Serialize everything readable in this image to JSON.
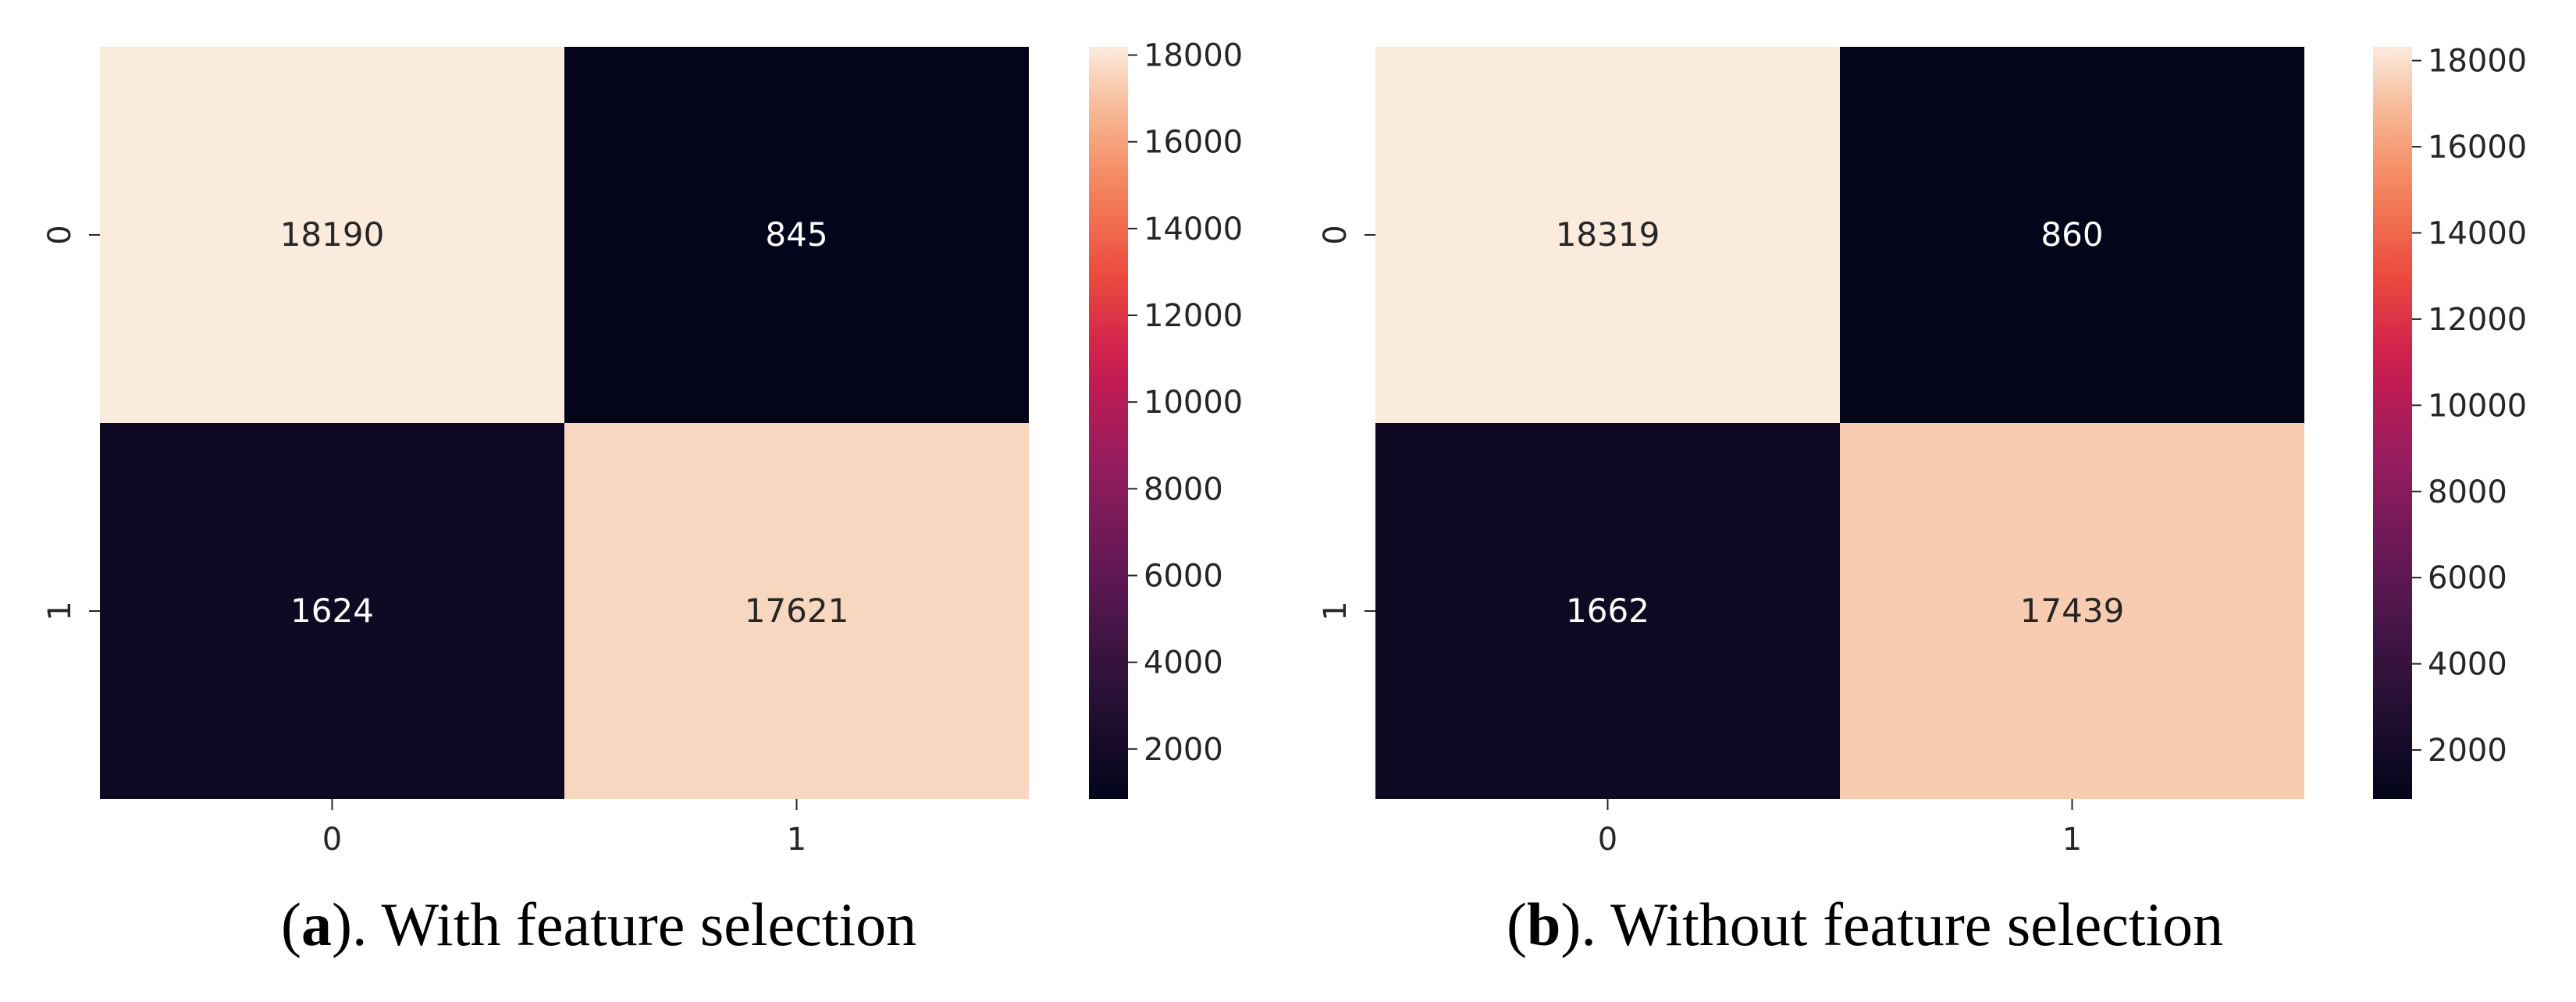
{
  "panels": [
    {
      "caption_letter": "a",
      "caption_text": "). With feature selection",
      "chart_data": {
        "type": "heatmap",
        "title": "",
        "xlabel": "",
        "ylabel": "",
        "x_categories": [
          "0",
          "1"
        ],
        "y_categories": [
          "0",
          "1"
        ],
        "values": [
          [
            18190,
            845
          ],
          [
            1624,
            17621
          ]
        ],
        "colorbar": {
          "min": 845,
          "max": 18190,
          "ticks": [
            2000,
            4000,
            6000,
            8000,
            10000,
            12000,
            14000,
            16000,
            18000
          ],
          "colormap": "rocket"
        },
        "grid": false,
        "legend": "colorbar-right"
      }
    },
    {
      "caption_letter": "b",
      "caption_text": "). Without feature selection",
      "chart_data": {
        "type": "heatmap",
        "title": "",
        "xlabel": "",
        "ylabel": "",
        "x_categories": [
          "0",
          "1"
        ],
        "y_categories": [
          "0",
          "1"
        ],
        "values": [
          [
            18319,
            860
          ],
          [
            1662,
            17439
          ]
        ],
        "colorbar": {
          "min": 860,
          "max": 18319,
          "ticks": [
            2000,
            4000,
            6000,
            8000,
            10000,
            12000,
            14000,
            16000,
            18000
          ],
          "colormap": "rocket"
        },
        "grid": false,
        "legend": "colorbar-right"
      }
    }
  ]
}
